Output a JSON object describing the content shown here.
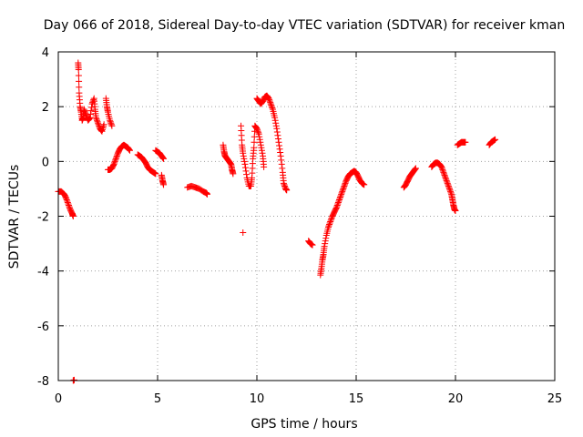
{
  "chart_data": {
    "type": "scatter",
    "title": "Day 066 of 2018, Sidereal Day-to-day VTEC variation (SDTVAR) for receiver kman",
    "xlabel": "GPS time / hours",
    "ylabel": "SDTVAR / TECUs",
    "xlim": [
      0,
      25
    ],
    "ylim": [
      -8,
      4
    ],
    "xticks": [
      0,
      5,
      10,
      15,
      20,
      25
    ],
    "yticks": [
      -8,
      -6,
      -4,
      -2,
      0,
      2,
      4
    ],
    "xtick_labels": [
      "0",
      "5",
      "10",
      "15",
      "20",
      "25"
    ],
    "ytick_labels": [
      "-8",
      "-6",
      "-4",
      "-2",
      "0",
      "2",
      "4"
    ],
    "grid": true,
    "marker": "+",
    "marker_color": "#ff0000",
    "series": [
      {
        "name": "SDTVAR",
        "segments": [
          [
            [
              0.0,
              -1.1
            ],
            [
              0.15,
              -1.1
            ],
            [
              0.3,
              -1.2
            ],
            [
              0.4,
              -1.35
            ],
            [
              0.5,
              -1.55
            ],
            [
              0.6,
              -1.75
            ],
            [
              0.7,
              -1.9
            ],
            [
              0.75,
              -2.0
            ]
          ],
          [
            [
              0.75,
              -8.0
            ],
            [
              0.8,
              -7.98
            ]
          ],
          [
            [
              1.0,
              3.6
            ],
            [
              1.02,
              3.35
            ],
            [
              1.05,
              2.5
            ],
            [
              1.1,
              2.0
            ],
            [
              1.15,
              1.8
            ],
            [
              1.2,
              1.5
            ],
            [
              1.25,
              1.6
            ],
            [
              1.3,
              1.9
            ],
            [
              1.4,
              1.7
            ],
            [
              1.5,
              1.5
            ],
            [
              1.6,
              1.6
            ],
            [
              1.7,
              2.1
            ],
            [
              1.8,
              2.3
            ],
            [
              1.85,
              1.9
            ],
            [
              1.9,
              1.6
            ],
            [
              2.0,
              1.4
            ],
            [
              2.1,
              1.2
            ],
            [
              2.2,
              1.1
            ],
            [
              2.3,
              1.35
            ]
          ],
          [
            [
              2.4,
              2.3
            ],
            [
              2.45,
              2.0
            ],
            [
              2.5,
              1.8
            ],
            [
              2.6,
              1.5
            ],
            [
              2.7,
              1.3
            ]
          ],
          [
            [
              2.5,
              -0.3
            ],
            [
              2.6,
              -0.3
            ],
            [
              2.7,
              -0.25
            ],
            [
              2.8,
              -0.1
            ],
            [
              2.9,
              0.1
            ],
            [
              3.0,
              0.3
            ],
            [
              3.1,
              0.45
            ],
            [
              3.2,
              0.55
            ],
            [
              3.3,
              0.6
            ],
            [
              3.4,
              0.55
            ],
            [
              3.5,
              0.5
            ],
            [
              3.6,
              0.4
            ]
          ],
          [
            [
              4.0,
              0.25
            ],
            [
              4.1,
              0.2
            ],
            [
              4.2,
              0.15
            ],
            [
              4.3,
              0.05
            ],
            [
              4.4,
              -0.05
            ],
            [
              4.5,
              -0.2
            ],
            [
              4.6,
              -0.3
            ],
            [
              4.7,
              -0.35
            ],
            [
              4.8,
              -0.4
            ],
            [
              4.9,
              -0.45
            ]
          ],
          [
            [
              4.9,
              0.4
            ],
            [
              5.0,
              0.35
            ],
            [
              5.1,
              0.3
            ],
            [
              5.2,
              0.2
            ],
            [
              5.3,
              0.1
            ]
          ],
          [
            [
              5.2,
              -0.5
            ],
            [
              5.25,
              -0.7
            ],
            [
              5.3,
              -0.85
            ]
          ],
          [
            [
              6.5,
              -0.95
            ],
            [
              6.7,
              -0.9
            ],
            [
              6.9,
              -0.95
            ],
            [
              7.1,
              -1.0
            ],
            [
              7.3,
              -1.1
            ],
            [
              7.45,
              -1.15
            ],
            [
              7.5,
              -1.2
            ]
          ],
          [
            [
              8.3,
              0.6
            ],
            [
              8.35,
              0.35
            ],
            [
              8.4,
              0.2
            ],
            [
              8.5,
              0.1
            ],
            [
              8.6,
              0.0
            ],
            [
              8.7,
              -0.1
            ],
            [
              8.75,
              -0.3
            ],
            [
              8.8,
              -0.45
            ]
          ],
          [
            [
              9.3,
              -2.6
            ]
          ],
          [
            [
              9.2,
              1.3
            ],
            [
              9.25,
              0.6
            ],
            [
              9.3,
              0.3
            ],
            [
              9.4,
              -0.1
            ],
            [
              9.5,
              -0.6
            ],
            [
              9.6,
              -0.9
            ],
            [
              9.7,
              -0.9
            ],
            [
              9.75,
              -0.6
            ],
            [
              9.8,
              0.1
            ],
            [
              9.85,
              0.5
            ],
            [
              9.9,
              1.3
            ],
            [
              10.0,
              1.2
            ],
            [
              10.1,
              1.0
            ],
            [
              10.2,
              0.6
            ],
            [
              10.3,
              0.2
            ],
            [
              10.35,
              -0.2
            ]
          ],
          [
            [
              10.0,
              2.3
            ],
            [
              10.1,
              2.2
            ],
            [
              10.2,
              2.1
            ],
            [
              10.3,
              2.2
            ],
            [
              10.4,
              2.35
            ],
            [
              10.5,
              2.4
            ],
            [
              10.6,
              2.3
            ],
            [
              10.7,
              2.1
            ],
            [
              10.8,
              1.9
            ],
            [
              10.9,
              1.6
            ],
            [
              11.0,
              1.2
            ],
            [
              11.1,
              0.7
            ],
            [
              11.2,
              0.2
            ],
            [
              11.3,
              -0.4
            ],
            [
              11.35,
              -0.8
            ],
            [
              11.45,
              -1.0
            ],
            [
              11.5,
              -1.05
            ]
          ],
          [
            [
              12.6,
              -2.9
            ],
            [
              12.7,
              -3.0
            ],
            [
              12.8,
              -3.05
            ]
          ],
          [
            [
              13.2,
              -4.15
            ],
            [
              13.25,
              -3.9
            ],
            [
              13.3,
              -3.6
            ],
            [
              13.35,
              -3.4
            ],
            [
              13.4,
              -3.1
            ],
            [
              13.5,
              -2.7
            ],
            [
              13.6,
              -2.4
            ],
            [
              13.7,
              -2.2
            ],
            [
              13.8,
              -2.0
            ],
            [
              13.9,
              -1.85
            ],
            [
              14.0,
              -1.7
            ],
            [
              14.1,
              -1.5
            ],
            [
              14.2,
              -1.3
            ],
            [
              14.3,
              -1.1
            ],
            [
              14.4,
              -0.9
            ],
            [
              14.5,
              -0.7
            ],
            [
              14.6,
              -0.55
            ],
            [
              14.7,
              -0.45
            ],
            [
              14.8,
              -0.4
            ],
            [
              14.9,
              -0.35
            ],
            [
              15.0,
              -0.4
            ],
            [
              15.1,
              -0.55
            ],
            [
              15.2,
              -0.7
            ],
            [
              15.3,
              -0.8
            ],
            [
              15.4,
              -0.85
            ]
          ],
          [
            [
              17.4,
              -0.95
            ],
            [
              17.5,
              -0.85
            ],
            [
              17.6,
              -0.7
            ],
            [
              17.7,
              -0.55
            ],
            [
              17.8,
              -0.45
            ],
            [
              17.9,
              -0.35
            ],
            [
              18.0,
              -0.25
            ]
          ],
          [
            [
              18.8,
              -0.2
            ],
            [
              18.9,
              -0.1
            ],
            [
              19.0,
              -0.05
            ],
            [
              19.1,
              -0.05
            ],
            [
              19.2,
              -0.1
            ],
            [
              19.3,
              -0.2
            ],
            [
              19.4,
              -0.4
            ],
            [
              19.5,
              -0.6
            ],
            [
              19.6,
              -0.8
            ],
            [
              19.7,
              -1.0
            ],
            [
              19.8,
              -1.2
            ],
            [
              19.85,
              -1.4
            ],
            [
              19.9,
              -1.6
            ],
            [
              19.95,
              -1.75
            ],
            [
              20.0,
              -1.8
            ]
          ],
          [
            [
              20.1,
              0.6
            ],
            [
              20.2,
              0.65
            ],
            [
              20.3,
              0.7
            ],
            [
              20.4,
              0.7
            ],
            [
              20.5,
              0.7
            ]
          ],
          [
            [
              21.7,
              0.6
            ],
            [
              21.8,
              0.7
            ],
            [
              21.9,
              0.75
            ],
            [
              22.0,
              0.8
            ]
          ]
        ]
      }
    ]
  }
}
